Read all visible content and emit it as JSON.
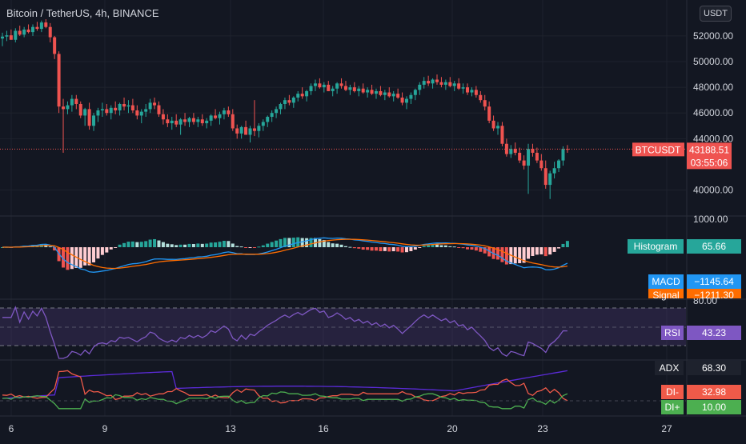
{
  "header": {
    "symbol_title": "Bitcoin / TetherUS, 4h, BINANCE",
    "currency": "USDT"
  },
  "price_labels": {
    "last_symbol": "BTCUSDT",
    "last_value": "43188.51",
    "countdown": "03:55:06"
  },
  "indicator_labels": {
    "histogram_name": "Histogram",
    "histogram_value": "65.66",
    "macd_name": "MACD",
    "macd_value": "−1145.64",
    "signal_name": "Signal",
    "signal_value": "−1211.30",
    "rsi_name": "RSI",
    "rsi_value": "43.23",
    "adx_name": "ADX",
    "adx_value": "68.30",
    "dim_name": "DI-",
    "dim_value": "32.98",
    "dip_name": "DI+",
    "dip_value": "10.00"
  },
  "colors": {
    "background": "#131722",
    "up": "#26a69a",
    "down": "#ef5350",
    "macd": "#2196f3",
    "signal": "#ff6d00",
    "rsi": "#7e57c2",
    "adx": "#5b2bd9",
    "di_minus": "#f05a49",
    "di_plus": "#4caf50"
  },
  "chart_data": {
    "type": "candlestick",
    "title": "Bitcoin / TetherUS, 4h, BINANCE",
    "price_axis": {
      "ticks": [
        "52000.00",
        "50000.00",
        "48000.00",
        "46000.00",
        "44000.00",
        "40000.00"
      ],
      "range": [
        38100,
        54800
      ]
    },
    "time_axis": {
      "labels": [
        "6",
        "9",
        "13",
        "16",
        "20",
        "23",
        "27"
      ]
    },
    "last_price": 43188.51,
    "candles_ohlc": [
      [
        51800,
        52250,
        51200,
        51950
      ],
      [
        51950,
        52400,
        51600,
        52050
      ],
      [
        52050,
        52500,
        51700,
        51700
      ],
      [
        51700,
        52600,
        51500,
        52400
      ],
      [
        52400,
        52800,
        52000,
        52100
      ],
      [
        52100,
        52700,
        51900,
        52500
      ],
      [
        52500,
        52900,
        52200,
        52300
      ],
      [
        52300,
        52900,
        52000,
        52700
      ],
      [
        52700,
        53100,
        52400,
        52550
      ],
      [
        52550,
        53200,
        52300,
        53050
      ],
      [
        53050,
        53300,
        52600,
        52700
      ],
      [
        52700,
        53000,
        51500,
        51900
      ],
      [
        51900,
        52000,
        50200,
        50600
      ],
      [
        50600,
        50800,
        46000,
        46500
      ],
      [
        46500,
        47100,
        42900,
        46300
      ],
      [
        46300,
        46900,
        45900,
        46600
      ],
      [
        46600,
        47400,
        46100,
        47100
      ],
      [
        47100,
        47400,
        46300,
        46700
      ],
      [
        46700,
        46900,
        45600,
        45800
      ],
      [
        45800,
        46400,
        45000,
        46300
      ],
      [
        46300,
        46800,
        44700,
        45000
      ],
      [
        45000,
        46000,
        44600,
        45800
      ],
      [
        45800,
        46400,
        45300,
        46200
      ],
      [
        46200,
        46800,
        45700,
        46300
      ],
      [
        46300,
        46700,
        45800,
        46000
      ],
      [
        46000,
        46600,
        45500,
        46400
      ],
      [
        46400,
        46900,
        45900,
        46200
      ],
      [
        46200,
        46800,
        45800,
        46700
      ],
      [
        46700,
        47200,
        46200,
        46500
      ],
      [
        46500,
        47000,
        46000,
        46600
      ],
      [
        46600,
        47100,
        46000,
        46200
      ],
      [
        46200,
        46600,
        45500,
        45800
      ],
      [
        45800,
        46300,
        45200,
        46100
      ],
      [
        46100,
        46700,
        45700,
        46300
      ],
      [
        46300,
        47100,
        46000,
        46800
      ],
      [
        46800,
        47200,
        46300,
        46600
      ],
      [
        46600,
        46900,
        45700,
        45900
      ],
      [
        45900,
        46300,
        45100,
        45500
      ],
      [
        45500,
        45900,
        44900,
        45200
      ],
      [
        45200,
        45700,
        44700,
        45400
      ],
      [
        45400,
        45900,
        44900,
        45100
      ],
      [
        45100,
        45600,
        44300,
        45500
      ],
      [
        45500,
        46000,
        45000,
        45300
      ],
      [
        45300,
        45700,
        44900,
        45600
      ],
      [
        45600,
        46000,
        45100,
        45300
      ],
      [
        45300,
        45700,
        44900,
        45500
      ],
      [
        45500,
        45900,
        45000,
        45200
      ],
      [
        45200,
        45600,
        44800,
        45400
      ],
      [
        45400,
        45900,
        45000,
        45800
      ],
      [
        45800,
        46300,
        45500,
        45600
      ],
      [
        45600,
        46100,
        45100,
        45900
      ],
      [
        45900,
        46400,
        45500,
        46200
      ],
      [
        46200,
        46500,
        45700,
        45900
      ],
      [
        45900,
        46300,
        44600,
        44800
      ],
      [
        44800,
        45100,
        44000,
        44400
      ],
      [
        44400,
        45000,
        44000,
        44900
      ],
      [
        44900,
        45400,
        44500,
        44300
      ],
      [
        44300,
        45000,
        43700,
        44800
      ],
      [
        44800,
        47000,
        44200,
        44600
      ],
      [
        44600,
        45200,
        44100,
        45000
      ],
      [
        45000,
        45500,
        44600,
        45300
      ],
      [
        45300,
        45800,
        44900,
        45700
      ],
      [
        45700,
        46200,
        45300,
        46000
      ],
      [
        46000,
        46500,
        45600,
        46300
      ],
      [
        46300,
        46800,
        45900,
        46700
      ],
      [
        46700,
        47200,
        46300,
        47000
      ],
      [
        47000,
        47400,
        46600,
        46800
      ],
      [
        46800,
        47300,
        46400,
        47200
      ],
      [
        47200,
        47700,
        46900,
        47500
      ],
      [
        47500,
        48000,
        47100,
        47300
      ],
      [
        47300,
        47800,
        46900,
        47700
      ],
      [
        47700,
        48300,
        47400,
        48100
      ],
      [
        48100,
        48600,
        47700,
        48300
      ],
      [
        48300,
        48700,
        47900,
        48000
      ],
      [
        48000,
        48400,
        47600,
        48200
      ],
      [
        48200,
        48500,
        47700,
        47700
      ],
      [
        47700,
        48100,
        47300,
        47900
      ],
      [
        47900,
        48400,
        47500,
        48300
      ],
      [
        48300,
        48700,
        47900,
        48100
      ],
      [
        48100,
        48500,
        47700,
        47800
      ],
      [
        47800,
        48200,
        47400,
        48000
      ],
      [
        48000,
        48400,
        47600,
        47700
      ],
      [
        47700,
        48100,
        47300,
        47900
      ],
      [
        47900,
        48300,
        47500,
        47600
      ],
      [
        47600,
        48000,
        47200,
        47800
      ],
      [
        47800,
        48200,
        47400,
        47500
      ],
      [
        47500,
        47900,
        47100,
        47700
      ],
      [
        47700,
        48100,
        47300,
        47400
      ],
      [
        47400,
        47800,
        47000,
        47600
      ],
      [
        47600,
        48000,
        47200,
        47300
      ],
      [
        47300,
        47700,
        46900,
        47500
      ],
      [
        47500,
        47900,
        47100,
        47200
      ],
      [
        47200,
        47600,
        46600,
        46800
      ],
      [
        46800,
        47300,
        46300,
        47100
      ],
      [
        47100,
        47600,
        46700,
        47400
      ],
      [
        47400,
        47900,
        47000,
        47800
      ],
      [
        47800,
        48400,
        47400,
        48200
      ],
      [
        48200,
        48800,
        47900,
        48500
      ],
      [
        48500,
        48900,
        48100,
        48300
      ],
      [
        48300,
        48700,
        47900,
        48600
      ],
      [
        48600,
        49000,
        48200,
        48400
      ],
      [
        48400,
        48800,
        48000,
        48200
      ],
      [
        48200,
        48600,
        47800,
        48400
      ],
      [
        48400,
        48800,
        48000,
        48100
      ],
      [
        48100,
        48500,
        47700,
        48300
      ],
      [
        48300,
        48700,
        47800,
        47900
      ],
      [
        47900,
        48300,
        47500,
        48000
      ],
      [
        48000,
        48300,
        47400,
        47600
      ],
      [
        47600,
        48000,
        47300,
        47800
      ],
      [
        47800,
        48100,
        47200,
        47400
      ],
      [
        47400,
        47700,
        46800,
        47000
      ],
      [
        47000,
        47400,
        46200,
        46500
      ],
      [
        46500,
        46900,
        45200,
        45400
      ],
      [
        45400,
        45800,
        44600,
        44800
      ],
      [
        44800,
        45300,
        44300,
        45000
      ],
      [
        45000,
        45300,
        43400,
        43600
      ],
      [
        43600,
        44000,
        42600,
        42800
      ],
      [
        42800,
        43500,
        42500,
        43200
      ],
      [
        43200,
        43700,
        42700,
        42900
      ],
      [
        42900,
        43300,
        42100,
        42300
      ],
      [
        42300,
        42700,
        41600,
        41900
      ],
      [
        41900,
        43600,
        39700,
        43200
      ],
      [
        43200,
        43600,
        42600,
        42900
      ],
      [
        42900,
        43300,
        42100,
        42300
      ],
      [
        42300,
        42800,
        41500,
        41700
      ],
      [
        41700,
        42300,
        40100,
        40400
      ],
      [
        40400,
        41500,
        39300,
        41300
      ],
      [
        41300,
        42200,
        40900,
        41700
      ],
      [
        41700,
        42400,
        41400,
        42300
      ],
      [
        42300,
        43400,
        41900,
        43200
      ],
      [
        43200,
        43500,
        42900,
        43188.51
      ]
    ],
    "macd_panel": {
      "ticks": [
        "1000.00"
      ],
      "histogram": 65.66,
      "macd": -1145.64,
      "signal": -1211.3
    },
    "rsi_panel": {
      "ticks": [
        "80.00"
      ],
      "value": 43.23
    },
    "adx_panel": {
      "adx": 68.3,
      "di_minus": 32.98,
      "di_plus": 10.0
    }
  }
}
